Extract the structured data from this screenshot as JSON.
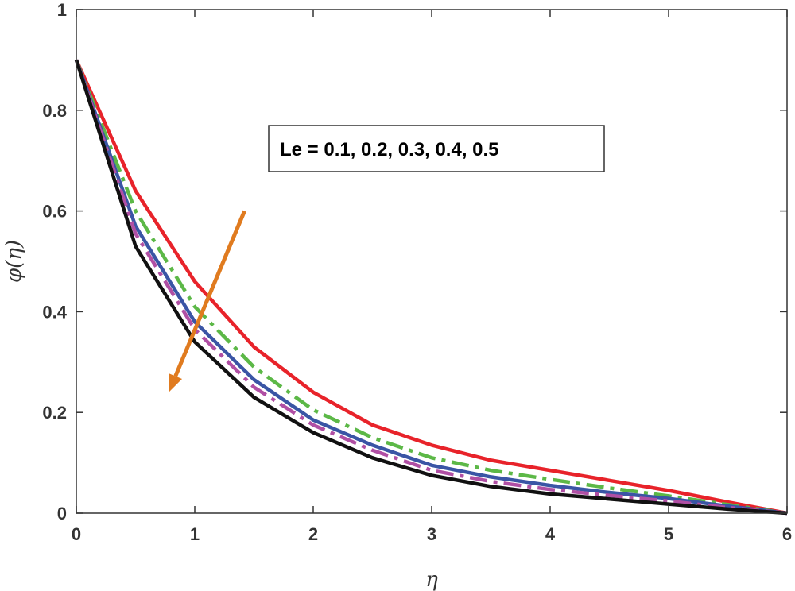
{
  "chart_data": {
    "type": "line",
    "xlabel": "η",
    "ylabel": "φ(η)",
    "xlim": [
      0,
      6
    ],
    "ylim": [
      0,
      1
    ],
    "x_ticks": [
      "0",
      "1",
      "2",
      "3",
      "4",
      "5",
      "6"
    ],
    "y_ticks": [
      "0",
      "0.2",
      "0.4",
      "0.6",
      "0.8",
      "1"
    ],
    "grid": false,
    "annotation": "Le = 0.1, 0.2, 0.3, 0.4, 0.5",
    "x": [
      0,
      0.5,
      1,
      1.5,
      2,
      2.5,
      3,
      3.5,
      4,
      4.5,
      5,
      5.5,
      6
    ],
    "series": [
      {
        "color": "#e8232a",
        "dash": "solid",
        "values": [
          0.9,
          0.64,
          0.46,
          0.33,
          0.24,
          0.175,
          0.135,
          0.105,
          0.085,
          0.065,
          0.045,
          0.022,
          0.0
        ]
      },
      {
        "color": "#5cb847",
        "dash": "dashdot",
        "values": [
          0.9,
          0.6,
          0.41,
          0.29,
          0.205,
          0.15,
          0.11,
          0.085,
          0.067,
          0.05,
          0.034,
          0.017,
          0.0
        ]
      },
      {
        "color": "#3a55a5",
        "dash": "solid",
        "values": [
          0.9,
          0.57,
          0.38,
          0.265,
          0.185,
          0.135,
          0.095,
          0.072,
          0.055,
          0.041,
          0.029,
          0.014,
          0.0
        ]
      },
      {
        "color": "#b04fa4",
        "dash": "dashdot",
        "values": [
          0.9,
          0.555,
          0.365,
          0.25,
          0.175,
          0.125,
          0.085,
          0.063,
          0.047,
          0.035,
          0.024,
          0.011,
          0.0
        ]
      },
      {
        "color": "#111111",
        "dash": "solid",
        "values": [
          0.9,
          0.53,
          0.34,
          0.23,
          0.16,
          0.11,
          0.075,
          0.053,
          0.038,
          0.028,
          0.018,
          0.008,
          0.0
        ]
      }
    ],
    "arrow": {
      "color": "#e07b1f",
      "from": [
        1.42,
        0.6
      ],
      "to": [
        0.78,
        0.24
      ]
    }
  }
}
